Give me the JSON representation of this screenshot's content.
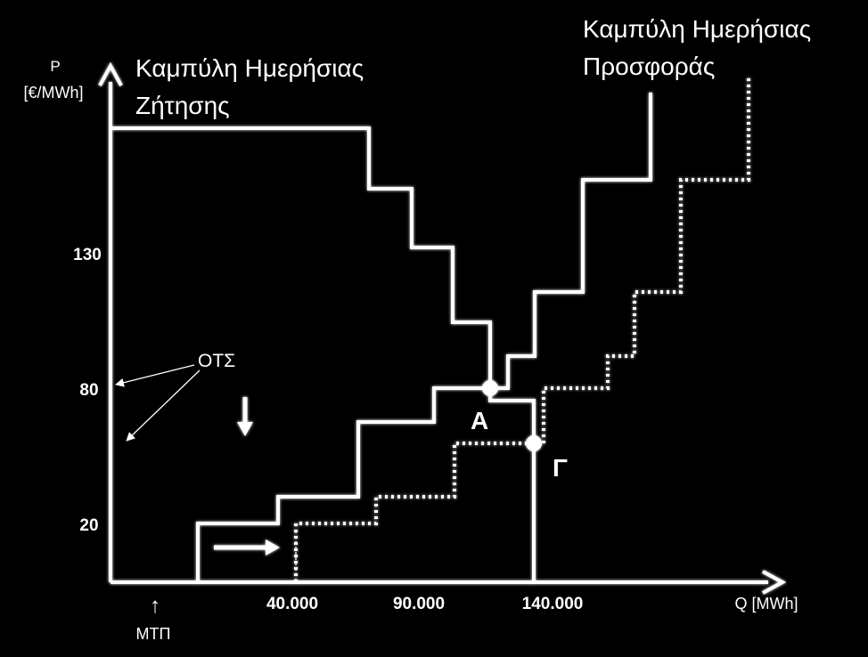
{
  "axes": {
    "y_label_top": "P",
    "y_label_unit": "[€/MWh]",
    "x_label": "Q  [MWh]",
    "y_ticks": [
      "130",
      "80",
      "20"
    ],
    "x_ticks": [
      "40.000",
      "90.000",
      "140.000"
    ]
  },
  "curves": {
    "demand_title_line1": "Καμπύλη Ημερήσιας",
    "demand_title_line2": "Ζήτησης",
    "supply_title_line1": "Καμπύλη Ημερήσιας",
    "supply_title_line2": "Προσφοράς"
  },
  "annotations": {
    "ots": "ΟΤΣ",
    "mtp": "ΜΤΠ",
    "mtp_arrow": "↑",
    "point_a": "Α",
    "point_g": "Γ"
  },
  "colors": {
    "background": "#000000",
    "stroke": "#ffffff"
  }
}
